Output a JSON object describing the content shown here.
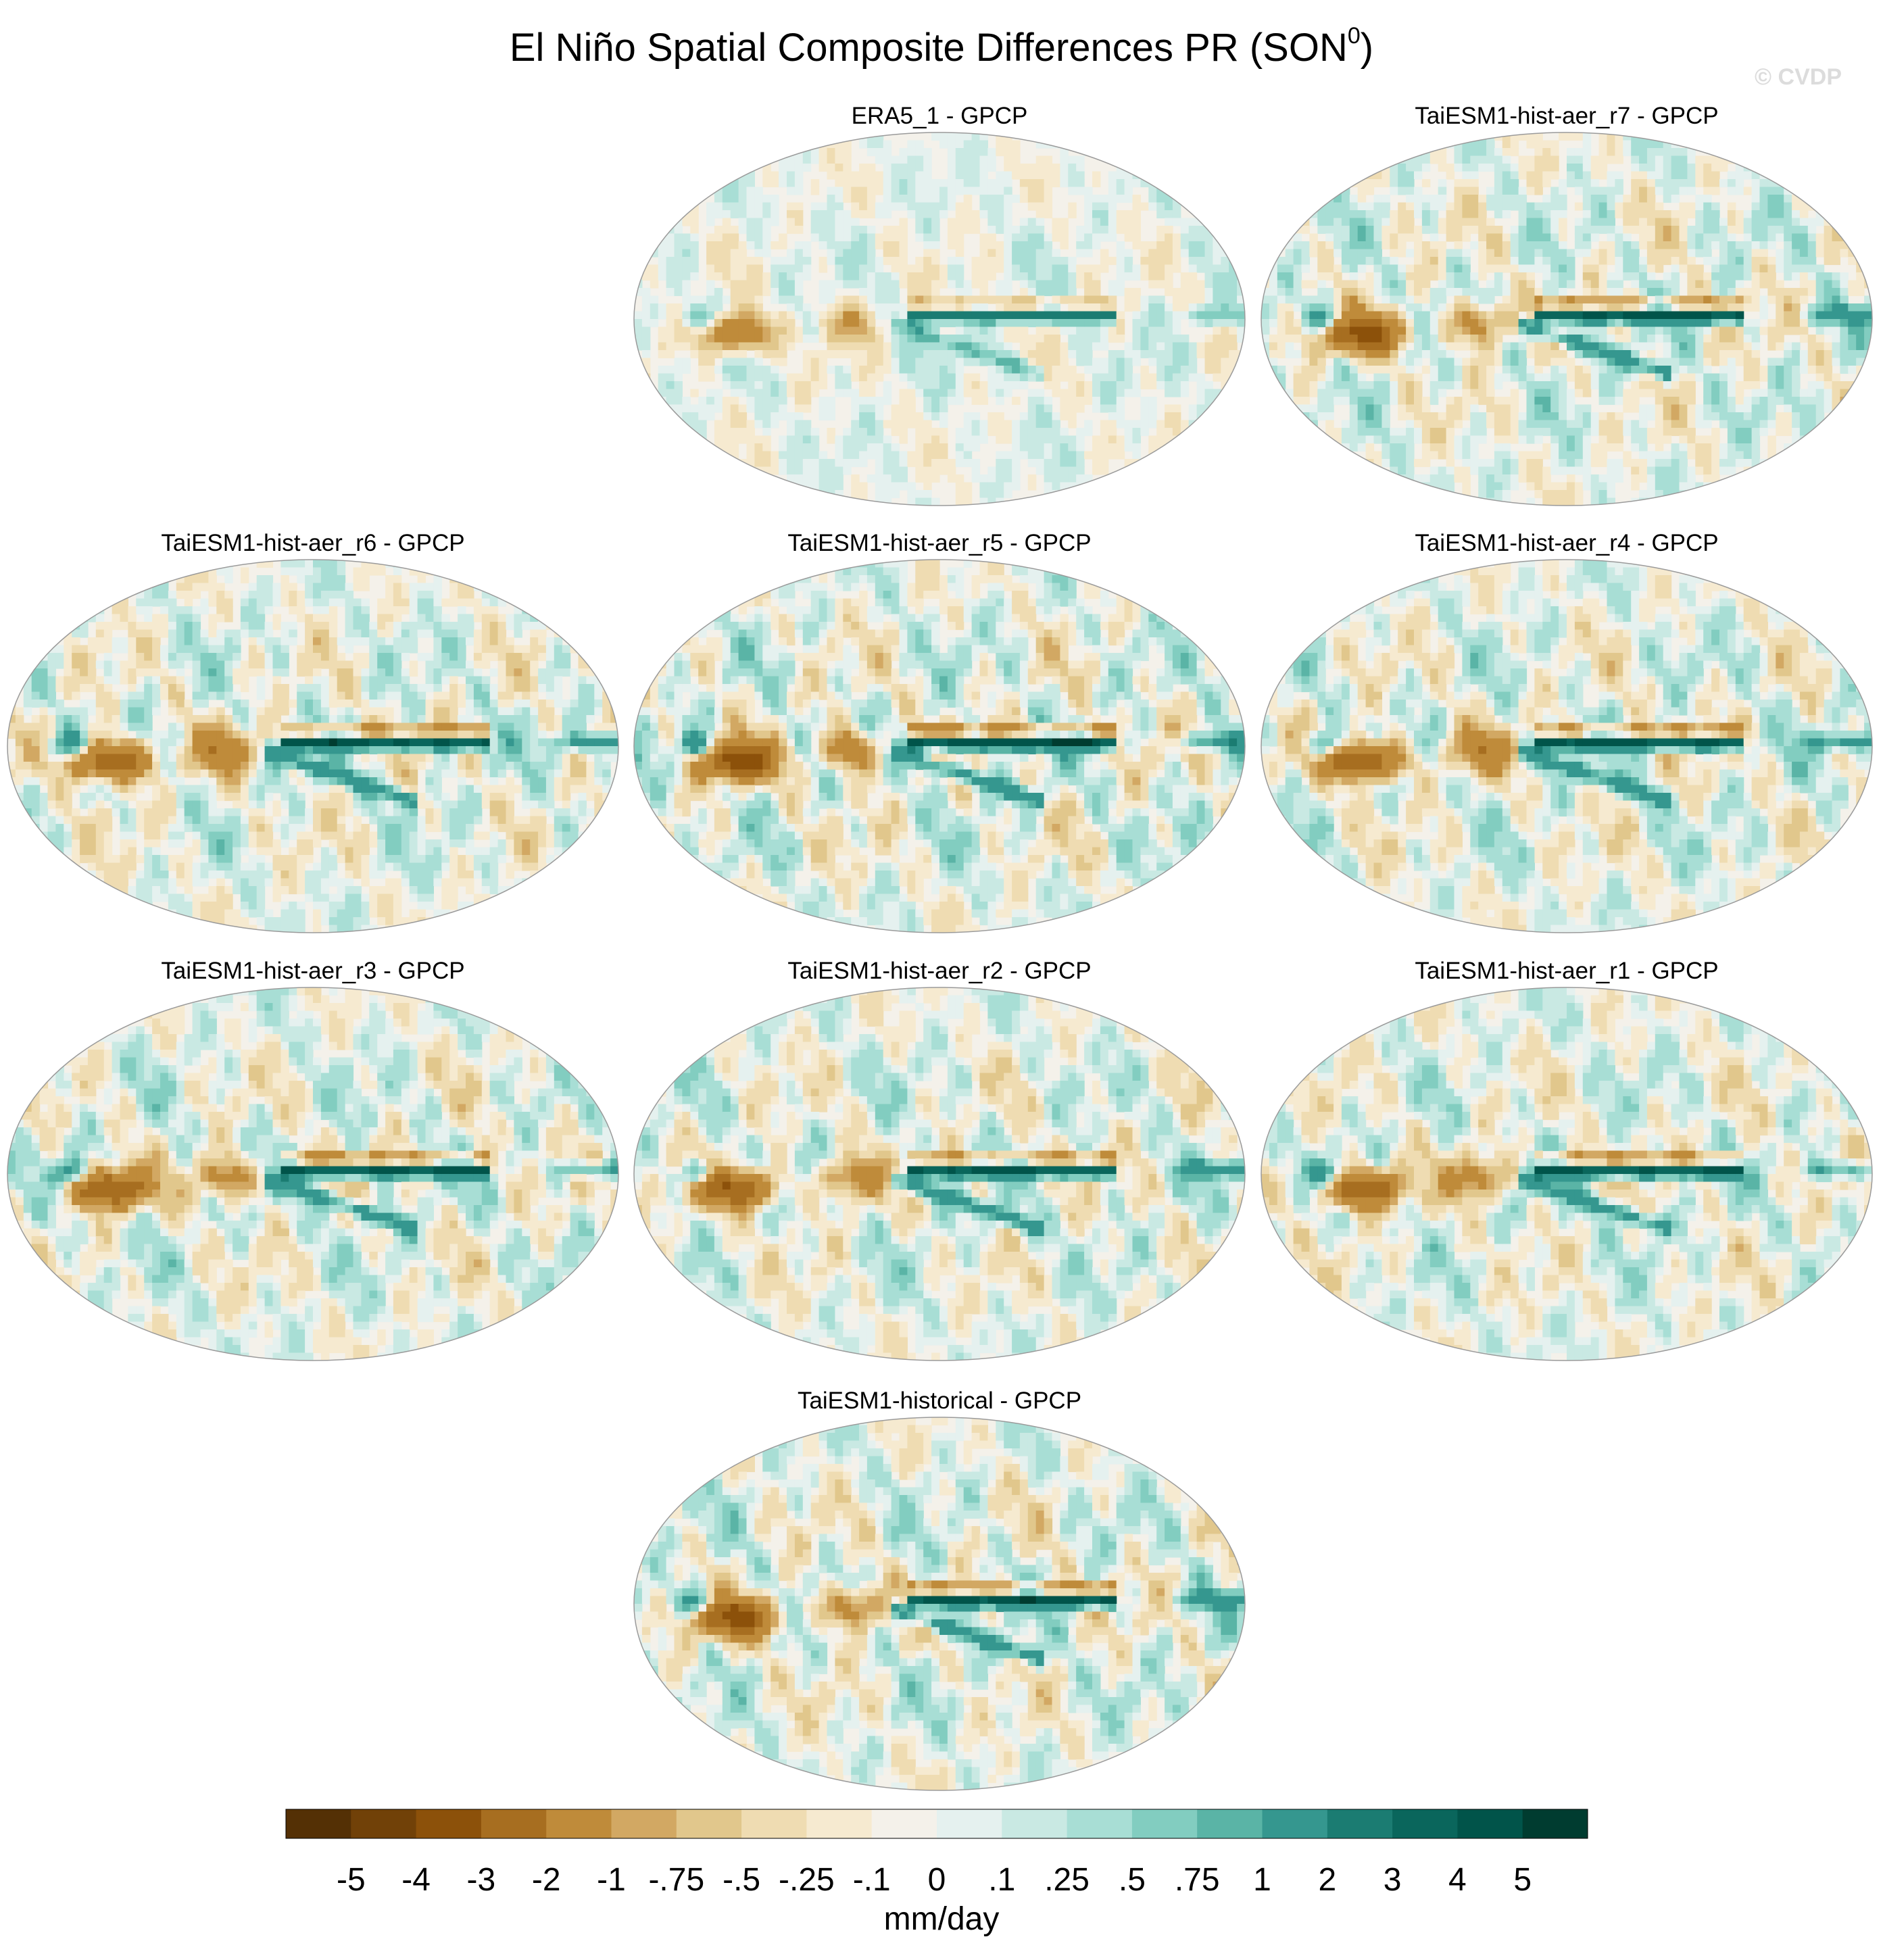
{
  "chart_data": {
    "type": "heatmap",
    "title": "El Niño Spatial Composite Differences PR (SON",
    "title_superscript": "0",
    "title_close": ")",
    "watermark": "© CVDP",
    "panels": [
      {
        "title": "ERA5_1 - GPCP",
        "row": 0,
        "col": 1,
        "strength": 0.55,
        "seed": 11
      },
      {
        "title": "TaiESM1-hist-aer_r7 - GPCP",
        "row": 0,
        "col": 2,
        "strength": 1.0,
        "seed": 27
      },
      {
        "title": "TaiESM1-hist-aer_r6 - GPCP",
        "row": 1,
        "col": 0,
        "strength": 1.0,
        "seed": 36
      },
      {
        "title": "TaiESM1-hist-aer_r5 - GPCP",
        "row": 1,
        "col": 1,
        "strength": 1.1,
        "seed": 45
      },
      {
        "title": "TaiESM1-hist-aer_r4 - GPCP",
        "row": 1,
        "col": 2,
        "strength": 1.0,
        "seed": 54
      },
      {
        "title": "TaiESM1-hist-aer_r3 - GPCP",
        "row": 2,
        "col": 0,
        "strength": 1.0,
        "seed": 63
      },
      {
        "title": "TaiESM1-hist-aer_r2 - GPCP",
        "row": 2,
        "col": 1,
        "strength": 0.95,
        "seed": 72
      },
      {
        "title": "TaiESM1-hist-aer_r1 - GPCP",
        "row": 2,
        "col": 2,
        "strength": 0.95,
        "seed": 81
      },
      {
        "title": "TaiESM1-historical - GPCP",
        "row": 3,
        "col": 1,
        "strength": 1.05,
        "seed": 90
      }
    ],
    "colorbar": {
      "levels": [
        "-5",
        "-4",
        "-3",
        "-2",
        "-1",
        "-.75",
        "-.5",
        "-.25",
        "-.1",
        "0",
        ".1",
        ".25",
        ".5",
        ".75",
        "1",
        "2",
        "3",
        "4",
        "5"
      ],
      "colors": [
        "#543005",
        "#714108",
        "#8c510a",
        "#a76e20",
        "#bf8b3a",
        "#d2a863",
        "#e1c78c",
        "#efdcb2",
        "#f6ead0",
        "#f4f1ea",
        "#e5f1ef",
        "#c9e9e3",
        "#a8ded5",
        "#82cdc0",
        "#5ab4a6",
        "#35978f",
        "#1b7c72",
        "#0a665c",
        "#01544a",
        "#003c30"
      ],
      "label": "mm/day"
    }
  }
}
